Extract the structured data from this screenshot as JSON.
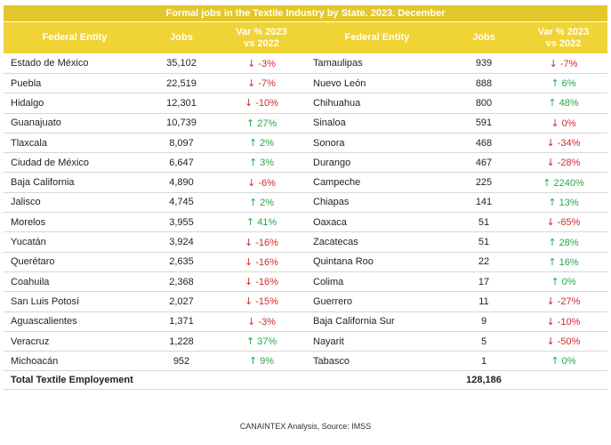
{
  "title": "Formal jobs in the Textile Industry by State. 2023. December",
  "headers": {
    "entity": "Federal Entity",
    "jobs": "Jobs",
    "var_line1": "Var % 2023",
    "var_line2": "vs 2022"
  },
  "left_rows": [
    {
      "entity": "Estado de México",
      "jobs": "35,102",
      "var": "-3%",
      "dir": "down"
    },
    {
      "entity": "Puebla",
      "jobs": "22,519",
      "var": "-7%",
      "dir": "down"
    },
    {
      "entity": "Hidalgo",
      "jobs": "12,301",
      "var": "-10%",
      "dir": "down"
    },
    {
      "entity": "Guanajuato",
      "jobs": "10,739",
      "var": "27%",
      "dir": "up"
    },
    {
      "entity": "Tlaxcala",
      "jobs": "8,097",
      "var": "2%",
      "dir": "up"
    },
    {
      "entity": "Ciudad de México",
      "jobs": "6,647",
      "var": "3%",
      "dir": "up"
    },
    {
      "entity": "Baja California",
      "jobs": "4,890",
      "var": "-6%",
      "dir": "down"
    },
    {
      "entity": "Jalisco",
      "jobs": "4,745",
      "var": "2%",
      "dir": "up"
    },
    {
      "entity": "Morelos",
      "jobs": "3,955",
      "var": "41%",
      "dir": "up"
    },
    {
      "entity": "Yucatán",
      "jobs": "3,924",
      "var": "-16%",
      "dir": "down"
    },
    {
      "entity": "Querétaro",
      "jobs": "2,635",
      "var": "-16%",
      "dir": "down"
    },
    {
      "entity": "Coahuila",
      "jobs": "2,368",
      "var": "-16%",
      "dir": "down"
    },
    {
      "entity": "San Luis Potosí",
      "jobs": "2,027",
      "var": "-15%",
      "dir": "down"
    },
    {
      "entity": "Aguascalientes",
      "jobs": "1,371",
      "var": "-3%",
      "dir": "down"
    },
    {
      "entity": "Veracruz",
      "jobs": "1,228",
      "var": "37%",
      "dir": "up"
    },
    {
      "entity": "Michoacán",
      "jobs": "952",
      "var": "9%",
      "dir": "up"
    }
  ],
  "right_rows": [
    {
      "entity": "Tamaulipas",
      "jobs": "939",
      "var": "-7%",
      "dir": "down"
    },
    {
      "entity": "Nuevo León",
      "jobs": "888",
      "var": "6%",
      "dir": "up"
    },
    {
      "entity": "Chihuahua",
      "jobs": "800",
      "var": "48%",
      "dir": "up"
    },
    {
      "entity": "Sinaloa",
      "jobs": "591",
      "var": "0%",
      "dir": "down"
    },
    {
      "entity": "Sonora",
      "jobs": "468",
      "var": "-34%",
      "dir": "down"
    },
    {
      "entity": "Durango",
      "jobs": "467",
      "var": "-28%",
      "dir": "down"
    },
    {
      "entity": "Campeche",
      "jobs": "225",
      "var": "2240%",
      "dir": "up"
    },
    {
      "entity": "Chiapas",
      "jobs": "141",
      "var": "13%",
      "dir": "up"
    },
    {
      "entity": "Oaxaca",
      "jobs": "51",
      "var": "-65%",
      "dir": "down"
    },
    {
      "entity": "Zacatecas",
      "jobs": "51",
      "var": "28%",
      "dir": "up"
    },
    {
      "entity": "Quintana Roo",
      "jobs": "22",
      "var": "16%",
      "dir": "up"
    },
    {
      "entity": "Colima",
      "jobs": "17",
      "var": "0%",
      "dir": "up"
    },
    {
      "entity": "Guerrero",
      "jobs": "11",
      "var": "-27%",
      "dir": "down"
    },
    {
      "entity": "Baja California Sur",
      "jobs": "9",
      "var": "-10%",
      "dir": "down"
    },
    {
      "entity": "Nayarit",
      "jobs": "5",
      "var": "-50%",
      "dir": "down"
    },
    {
      "entity": "Tabasco",
      "jobs": "1",
      "var": "0%",
      "dir": "up"
    }
  ],
  "total": {
    "label": "Total Textile Employement",
    "value": "128,186"
  },
  "arrows": {
    "up": "↑",
    "down": "↓"
  },
  "colors": {
    "header": "#f0d335",
    "title": "#e3c72c",
    "up": "#27a845",
    "down": "#d02b2b"
  },
  "source": "CANAINTEX Analysis, Source: IMSS"
}
